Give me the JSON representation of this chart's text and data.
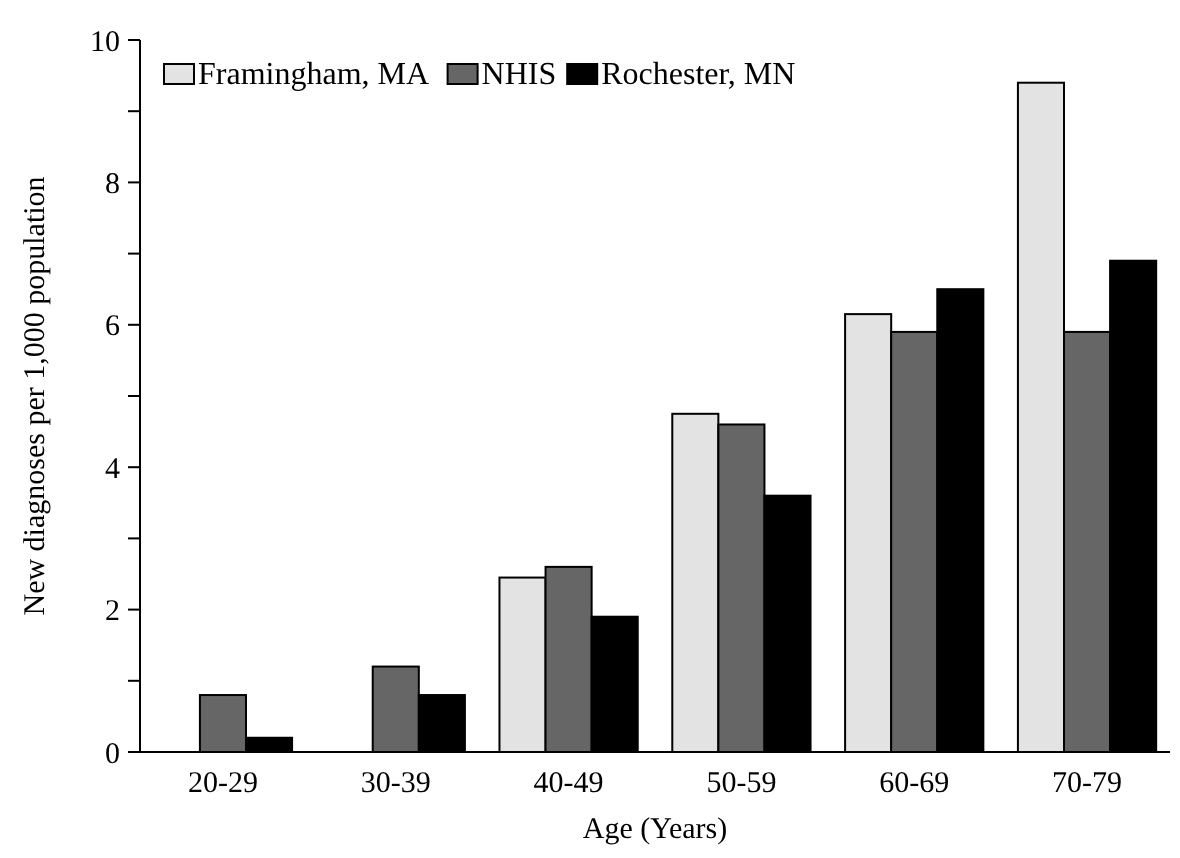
{
  "chart_data": {
    "type": "bar",
    "xlabel": "Age (Years)",
    "ylabel": "New diagnoses per 1,000 population",
    "categories": [
      "20-29",
      "30-39",
      "40-49",
      "50-59",
      "60-69",
      "70-79"
    ],
    "series": [
      {
        "name": "Framingham, MA",
        "color": "#e3e3e3",
        "values": [
          null,
          null,
          2.45,
          4.75,
          6.15,
          9.4
        ]
      },
      {
        "name": "NHIS",
        "color": "#666666",
        "values": [
          0.8,
          1.2,
          2.6,
          4.6,
          5.9,
          5.9
        ]
      },
      {
        "name": "Rochester, MN",
        "color": "#000000",
        "values": [
          0.2,
          0.8,
          1.9,
          3.6,
          6.5,
          6.9
        ]
      }
    ],
    "ylim": [
      0,
      10
    ],
    "yticks": [
      0,
      {
        "value": 1,
        "label": null
      },
      2,
      {
        "value": 3,
        "label": null
      },
      4,
      {
        "value": 5,
        "label": null
      },
      6,
      {
        "value": 7,
        "label": null
      },
      8,
      {
        "value": 9,
        "label": null
      },
      10
    ],
    "legend": "top left",
    "grid": false
  }
}
